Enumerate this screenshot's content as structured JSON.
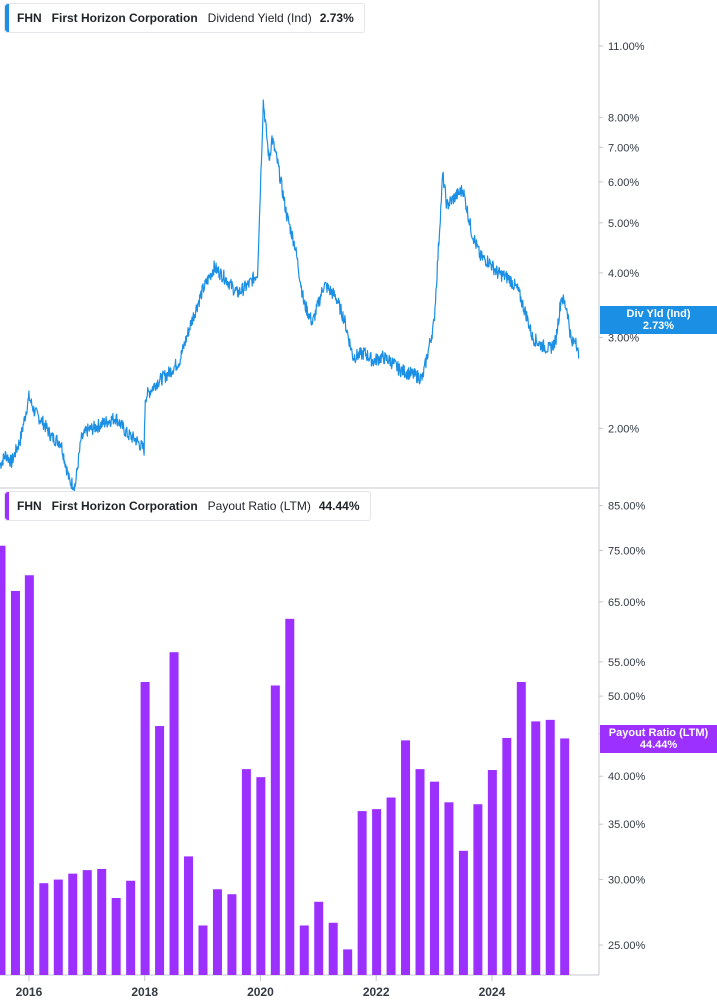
{
  "colors": {
    "yield": "#1a8fe3",
    "payout": "#9b30ff",
    "axis": "#c4c8d0",
    "text": "#333a44"
  },
  "top_legend": {
    "ticker": "FHN",
    "company": "First Horizon Corporation",
    "metric": "Dividend Yield (Ind)",
    "value": "2.73%"
  },
  "bottom_legend": {
    "ticker": "FHN",
    "company": "First Horizon Corporation",
    "metric": "Payout Ratio (LTM)",
    "value": "44.44%"
  },
  "top_flag": {
    "line1": "Div Yld (Ind)",
    "line2": "2.73%"
  },
  "bottom_flag": {
    "line1": "Payout Ratio (LTM)",
    "line2": "44.44%"
  },
  "chart_data": [
    {
      "type": "line",
      "scale": "log",
      "series": [
        {
          "name": "Dividend Yield (Ind)"
        }
      ],
      "y_ticks": [
        "11.00%",
        "8.00%",
        "7.00%",
        "6.00%",
        "5.00%",
        "4.00%",
        "3.00%",
        "2.00%"
      ],
      "y_tick_values": [
        11,
        8,
        7,
        6,
        5,
        4,
        3,
        2
      ],
      "x_ticks": [
        "2016",
        "2018",
        "2020",
        "2022",
        "2024"
      ],
      "x_tick_values": [
        2016,
        2018,
        2020,
        2022,
        2024
      ],
      "xlim": [
        2015.5,
        2025.85
      ],
      "ylim": [
        1.54,
        13.5
      ],
      "last_value": 2.73,
      "x": [
        2015.5,
        2015.6,
        2015.7,
        2015.85,
        2016.0,
        2016.1,
        2016.25,
        2016.4,
        2016.55,
        2016.7,
        2016.8,
        2016.9,
        2017.0,
        2017.1,
        2017.3,
        2017.5,
        2017.7,
        2017.85,
        2017.99,
        2018.01,
        2018.2,
        2018.4,
        2018.6,
        2018.8,
        2019.0,
        2019.2,
        2019.4,
        2019.6,
        2019.8,
        2019.95,
        2020.05,
        2020.15,
        2020.2,
        2020.3,
        2020.45,
        2020.6,
        2020.75,
        2020.9,
        2021.1,
        2021.3,
        2021.45,
        2021.6,
        2021.8,
        2021.95,
        2022.1,
        2022.25,
        2022.4,
        2022.6,
        2022.8,
        2023.0,
        2023.15,
        2023.22,
        2023.35,
        2023.5,
        2023.65,
        2023.8,
        2023.95,
        2024.1,
        2024.3,
        2024.45,
        2024.6,
        2024.7,
        2024.85,
        2025.0,
        2025.1,
        2025.2,
        2025.3,
        2025.38,
        2025.45,
        2025.5
      ],
      "values": [
        1.7,
        1.78,
        1.72,
        1.9,
        2.3,
        2.15,
        2.05,
        1.92,
        1.88,
        1.58,
        1.55,
        1.9,
        1.98,
        2.0,
        2.05,
        2.1,
        1.95,
        1.9,
        1.82,
        2.3,
        2.45,
        2.55,
        2.7,
        3.2,
        3.7,
        4.1,
        3.9,
        3.65,
        3.8,
        4.0,
        8.6,
        6.6,
        7.3,
        6.5,
        5.2,
        4.5,
        3.5,
        3.2,
        3.8,
        3.6,
        3.25,
        2.75,
        2.8,
        2.7,
        2.75,
        2.7,
        2.6,
        2.55,
        2.5,
        3.2,
        6.2,
        5.4,
        5.6,
        5.8,
        4.8,
        4.3,
        4.2,
        4.0,
        3.9,
        3.7,
        3.3,
        3.0,
        2.9,
        2.85,
        2.95,
        3.6,
        3.4,
        2.9,
        3.0,
        2.73
      ]
    },
    {
      "type": "bar",
      "scale": "log",
      "series": [
        {
          "name": "Payout Ratio (LTM)"
        }
      ],
      "y_ticks": [
        "85.00%",
        "75.00%",
        "65.00%",
        "55.00%",
        "50.00%",
        "45.00%",
        "40.00%",
        "35.00%",
        "30.00%",
        "25.00%"
      ],
      "y_tick_values": [
        85,
        75,
        65,
        55,
        50,
        45,
        40,
        35,
        30,
        25
      ],
      "x_ticks": [
        "2016",
        "2018",
        "2020",
        "2022",
        "2024"
      ],
      "x_tick_values": [
        2016,
        2018,
        2020,
        2022,
        2024
      ],
      "xlim": [
        2015.5,
        2025.85
      ],
      "ylim": [
        23.0,
        89.0
      ],
      "last_value": 44.44,
      "x": [
        2015.5,
        2015.75,
        2015.99,
        2016.24,
        2016.49,
        2016.74,
        2016.99,
        2017.24,
        2017.49,
        2017.74,
        2017.99,
        2018.24,
        2018.49,
        2018.74,
        2018.99,
        2019.24,
        2019.49,
        2019.74,
        2019.99,
        2020.24,
        2020.49,
        2020.74,
        2020.99,
        2021.24,
        2021.49,
        2021.74,
        2021.99,
        2022.24,
        2022.49,
        2022.74,
        2022.99,
        2023.24,
        2023.49,
        2023.74,
        2023.99,
        2024.24,
        2024.49,
        2024.74,
        2024.99,
        2025.24
      ],
      "values": [
        76.0,
        67.0,
        70.0,
        29.7,
        30.0,
        30.5,
        30.8,
        30.9,
        28.5,
        29.9,
        52.0,
        46.0,
        56.5,
        32.0,
        26.4,
        29.2,
        28.8,
        40.8,
        39.9,
        51.5,
        62.0,
        26.4,
        28.2,
        26.6,
        24.7,
        36.3,
        36.5,
        37.7,
        44.2,
        40.8,
        39.4,
        37.2,
        32.5,
        37.0,
        40.7,
        44.5,
        52.0,
        46.6,
        46.8,
        44.44
      ]
    }
  ]
}
